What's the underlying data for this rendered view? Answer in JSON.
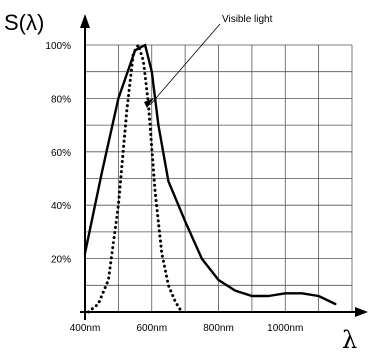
{
  "chart_data": {
    "type": "line",
    "ylabel": "S(λ)",
    "xlabel": "λ",
    "xlim": [
      400,
      1200
    ],
    "ylim": [
      0,
      100
    ],
    "x_ticks": [
      {
        "value": 400,
        "label": "400nm"
      },
      {
        "value": 600,
        "label": "600nm"
      },
      {
        "value": 800,
        "label": "800nm"
      },
      {
        "value": 1000,
        "label": "1000nm"
      }
    ],
    "y_ticks": [
      {
        "value": 20,
        "label": "20%"
      },
      {
        "value": 40,
        "label": "40%"
      },
      {
        "value": 60,
        "label": "60%"
      },
      {
        "value": 80,
        "label": "80%"
      },
      {
        "value": 100,
        "label": "100%"
      }
    ],
    "grid": true,
    "annotation": "Visible light",
    "series": [
      {
        "style": "solid",
        "x": [
          400,
          450,
          500,
          550,
          580,
          600,
          620,
          650,
          700,
          750,
          800,
          850,
          900,
          950,
          1000,
          1050,
          1100,
          1150
        ],
        "y": [
          22,
          52,
          80,
          98,
          100,
          90,
          70,
          49,
          34,
          20,
          12,
          8,
          6,
          6,
          7,
          7,
          6,
          3
        ]
      },
      {
        "style": "dotted",
        "x": [
          410,
          440,
          470,
          500,
          525,
          545,
          560,
          575,
          590,
          610,
          630,
          650,
          670,
          690
        ],
        "y": [
          0,
          3,
          12,
          40,
          75,
          97,
          100,
          94,
          78,
          45,
          22,
          10,
          4,
          0
        ]
      }
    ]
  }
}
